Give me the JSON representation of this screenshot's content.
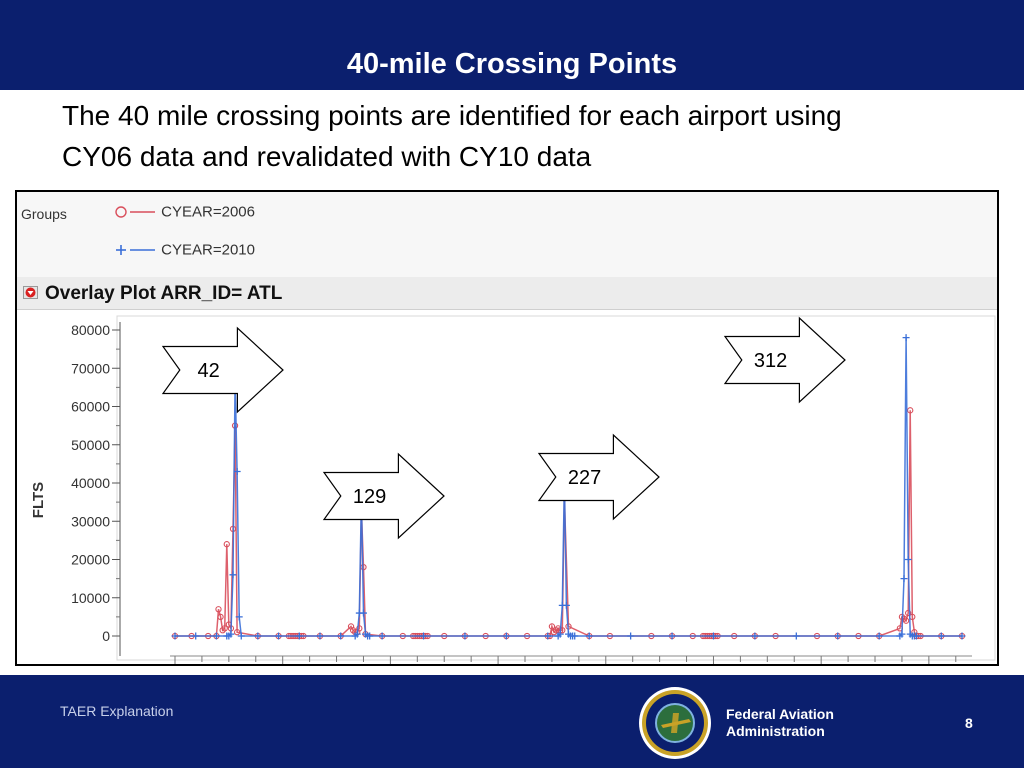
{
  "slide": {
    "title": "40-mile Crossing Points",
    "subtitle_line1": "The 40 mile crossing points are identified for each airport using",
    "subtitle_line2": "CY06 data and revalidated with CY10 data"
  },
  "plot_panel": {
    "groups_label": "Groups",
    "overlay_label": "Overlay Plot ARR_ID= ATL"
  },
  "callouts": [
    "42",
    "129",
    "227",
    "312"
  ],
  "footer": {
    "left_text": "TAER Explanation",
    "org_line1": "Federal Aviation",
    "org_line2": "Administration",
    "page_number": "8"
  },
  "colors": {
    "header_bg": "#0b1f6e",
    "series_2006": "#d94f5c",
    "series_2010": "#3a6fd8"
  },
  "icons": [
    "disclosure-triangle-icon",
    "faa-seal-icon",
    "circle-marker-icon",
    "plus-marker-icon",
    "arrow-callout-icon"
  ],
  "chart_data": {
    "type": "line",
    "xlabel": "",
    "ylabel": "FLTS",
    "ylim": [
      0,
      80000
    ],
    "yticks": [
      0,
      10000,
      20000,
      30000,
      40000,
      50000,
      60000,
      70000,
      80000
    ],
    "grid": false,
    "legend_placement": "top-left",
    "series": [
      {
        "name": "CYEAR=2006",
        "x": [
          0,
          8,
          16,
          20,
          21,
          22,
          23,
          24,
          25,
          26,
          27,
          28,
          29,
          30,
          40,
          50,
          55,
          56,
          57,
          58,
          59,
          60,
          61,
          62,
          70,
          80,
          85,
          86,
          87,
          88,
          89,
          90,
          91,
          92,
          100,
          110,
          115,
          116,
          117,
          118,
          119,
          120,
          121,
          122,
          130,
          140,
          150,
          160,
          170,
          180,
          181,
          182,
          183,
          184,
          185,
          186,
          187,
          188,
          190,
          200,
          210,
          230,
          240,
          250,
          255,
          256,
          257,
          258,
          259,
          260,
          261,
          262,
          270,
          280,
          290,
          310,
          320,
          330,
          340,
          350,
          351,
          352,
          353,
          354,
          355,
          356,
          357,
          358,
          359,
          360,
          370,
          380
        ],
        "y": [
          0,
          0,
          0,
          0,
          7000,
          5000,
          1500,
          2000,
          24000,
          3000,
          2000,
          28000,
          55000,
          1000,
          0,
          0,
          0,
          0,
          0,
          0,
          0,
          0,
          0,
          0,
          0,
          0,
          2500,
          1500,
          1000,
          1000,
          2000,
          33000,
          18000,
          500,
          0,
          0,
          0,
          0,
          0,
          0,
          0,
          0,
          0,
          0,
          0,
          0,
          0,
          0,
          0,
          0,
          0,
          2500,
          1000,
          1500,
          2000,
          1500,
          1500,
          36000,
          2500,
          0,
          0,
          0,
          0,
          0,
          0,
          0,
          0,
          0,
          0,
          0,
          0,
          0,
          0,
          0,
          0,
          0,
          0,
          0,
          0,
          2000,
          5000,
          4500,
          4000,
          6000,
          59000,
          5000,
          1000,
          0,
          0,
          0,
          0,
          0
        ]
      },
      {
        "name": "CYEAR=2010",
        "x": [
          0,
          10,
          20,
          25,
          26,
          27,
          28,
          29,
          30,
          31,
          32,
          40,
          50,
          60,
          70,
          80,
          87,
          88,
          89,
          90,
          91,
          92,
          93,
          94,
          100,
          120,
          140,
          160,
          180,
          185,
          186,
          187,
          188,
          189,
          190,
          191,
          192,
          193,
          200,
          220,
          240,
          260,
          280,
          300,
          320,
          340,
          350,
          351,
          352,
          353,
          354,
          355,
          356,
          357,
          358,
          370,
          380
        ],
        "y": [
          0,
          0,
          0,
          0,
          0,
          500,
          16000,
          67000,
          43000,
          5000,
          0,
          0,
          0,
          0,
          0,
          0,
          0,
          500,
          6000,
          36000,
          6000,
          500,
          0,
          0,
          0,
          0,
          0,
          0,
          0,
          0,
          500,
          8000,
          41000,
          8000,
          500,
          0,
          0,
          0,
          0,
          0,
          0,
          0,
          0,
          0,
          0,
          0,
          0,
          500,
          15000,
          78000,
          20000,
          500,
          0,
          0,
          0,
          0,
          0
        ]
      }
    ]
  }
}
